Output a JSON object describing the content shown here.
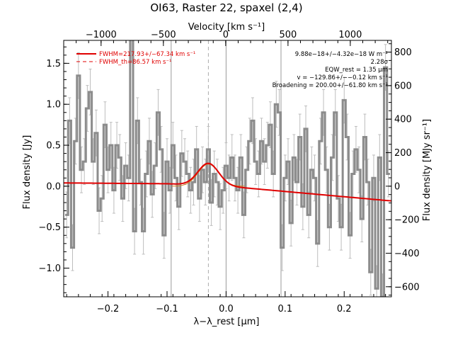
{
  "chart_data": {
    "type": "line",
    "title": "OI63, Raster 22, spaxel (2,4)",
    "xlabel": "λ−λ_rest [μm]",
    "ylabel": "Flux density [Jy]",
    "top_xlabel": "Velocity [km s⁻¹]",
    "right_ylabel": "Flux density [MJy sr⁻¹]",
    "xlim": [
      -0.275,
      0.28
    ],
    "ylim": [
      -1.35,
      1.78
    ],
    "right_ylim": [
      -660,
      870
    ],
    "top_xlim": [
      -1300,
      1330
    ],
    "x_ticks": [
      -0.2,
      -0.1,
      0.0,
      0.1,
      0.2
    ],
    "x_tick_labels": [
      "−0.2",
      "−0.1",
      "0.0",
      "0.1",
      "0.2"
    ],
    "y_ticks": [
      -1.0,
      -0.5,
      0.0,
      0.5,
      1.0,
      1.5
    ],
    "y_tick_labels": [
      "−1.0",
      "−0.5",
      "0.0",
      "0.5",
      "1.0",
      "1.5"
    ],
    "top_ticks": [
      -1000,
      -500,
      0,
      500,
      1000
    ],
    "top_tick_labels": [
      "−1000",
      "−500",
      "0",
      "500",
      "1000"
    ],
    "right_ticks": [
      -600,
      -400,
      -200,
      0,
      200,
      400,
      600,
      800
    ],
    "right_tick_labels": [
      "−600",
      "−400",
      "−200",
      "0",
      "200",
      "400",
      "600",
      "800"
    ],
    "vertical_lines": [
      -0.093,
      0.0,
      0.093
    ],
    "dashed_line": -0.03,
    "series": [
      {
        "kind": "step-spectrum",
        "color": "#8c8c8c",
        "x": [
          -0.27,
          -0.265,
          -0.26,
          -0.255,
          -0.25,
          -0.245,
          -0.24,
          -0.235,
          -0.23,
          -0.225,
          -0.22,
          -0.215,
          -0.21,
          -0.205,
          -0.2,
          -0.195,
          -0.19,
          -0.185,
          -0.18,
          -0.175,
          -0.17,
          -0.165,
          -0.16,
          -0.155,
          -0.15,
          -0.145,
          -0.14,
          -0.135,
          -0.13,
          -0.125,
          -0.12,
          -0.115,
          -0.11,
          -0.105,
          -0.1,
          -0.095,
          -0.09,
          -0.085,
          -0.08,
          -0.075,
          -0.07,
          -0.065,
          -0.06,
          -0.055,
          -0.05,
          -0.045,
          -0.04,
          -0.035,
          -0.03,
          -0.025,
          -0.02,
          -0.015,
          -0.01,
          -0.005,
          0.0,
          0.005,
          0.01,
          0.015,
          0.02,
          0.025,
          0.03,
          0.035,
          0.04,
          0.045,
          0.05,
          0.055,
          0.06,
          0.065,
          0.07,
          0.075,
          0.08,
          0.085,
          0.09,
          0.095,
          0.1,
          0.105,
          0.11,
          0.115,
          0.12,
          0.125,
          0.13,
          0.135,
          0.14,
          0.145,
          0.15,
          0.155,
          0.16,
          0.165,
          0.17,
          0.175,
          0.18,
          0.185,
          0.19,
          0.195,
          0.2,
          0.205,
          0.21,
          0.215,
          0.22,
          0.225,
          0.23,
          0.235,
          0.24,
          0.245,
          0.25,
          0.255,
          0.26,
          0.265,
          0.27,
          0.275
        ],
        "y": [
          -0.35,
          0.8,
          -0.75,
          0.55,
          1.35,
          0.2,
          0.3,
          0.95,
          1.15,
          0.3,
          0.65,
          -0.3,
          -0.15,
          0.75,
          0.2,
          0.5,
          -0.05,
          0.5,
          0.35,
          -0.15,
          0.25,
          0.1,
          1.8,
          -0.55,
          0.8,
          0.05,
          -0.55,
          0.15,
          0.55,
          -0.1,
          0.25,
          0.9,
          0.45,
          -0.6,
          0.3,
          -0.05,
          0.5,
          0.1,
          -0.25,
          0.4,
          0.3,
          0.15,
          -0.05,
          0.05,
          0.45,
          -0.15,
          0.2,
          0.05,
          0.45,
          -0.2,
          0.15,
          0.05,
          -0.25,
          -0.05,
          0.25,
          0.1,
          0.35,
          0.1,
          -0.05,
          0.35,
          -0.35,
          0.2,
          0.55,
          0.8,
          0.3,
          0.15,
          0.55,
          0.3,
          0.5,
          0.75,
          0.15,
          1.0,
          0.9,
          -0.75,
          0.1,
          0.3,
          -0.45,
          0.35,
          0.05,
          0.6,
          -0.25,
          0.7,
          -0.35,
          0.2,
          0.1,
          -0.7,
          0.55,
          0.9,
          0.2,
          -0.5,
          0.35,
          0.9,
          -0.15,
          -0.5,
          1.05,
          0.6,
          -0.6,
          0.15,
          0.45,
          0.2,
          -0.4,
          0.6,
          0.05,
          -1.05,
          0.1,
          -1.25,
          0.35,
          -1.35,
          1.45,
          0.15
        ],
        "err": 0.28
      },
      {
        "kind": "fit",
        "name": "FWHM=217.93+/−67.34 km s⁻¹",
        "color": "#e00000",
        "continuum": [
          [
            -0.275,
            0.04
          ],
          [
            -0.1,
            0.03
          ],
          [
            0.0,
            0.0
          ],
          [
            0.28,
            -0.18
          ]
        ],
        "gauss_center": -0.03,
        "gauss_amp": 0.27,
        "gauss_sigma": 0.0175
      }
    ],
    "legend": {
      "placement": "top-left",
      "entries": [
        {
          "label": "FWHM=217.93+/−67.34 km s⁻¹",
          "style": "solid",
          "color": "#e00000"
        },
        {
          "label": "FWHM_th=86.57 km s⁻¹",
          "style": "dashed",
          "color": "#e00000"
        }
      ]
    },
    "annotations": [
      "9.88e−18+/−4.32e−18 W m⁻²",
      "2.28σ",
      "EQW_rest = 1.35 μm",
      "v = −129.86+/−−0.12 km s⁻¹",
      "Broadening = 200.00+/−61.80 km s⁻¹"
    ]
  }
}
